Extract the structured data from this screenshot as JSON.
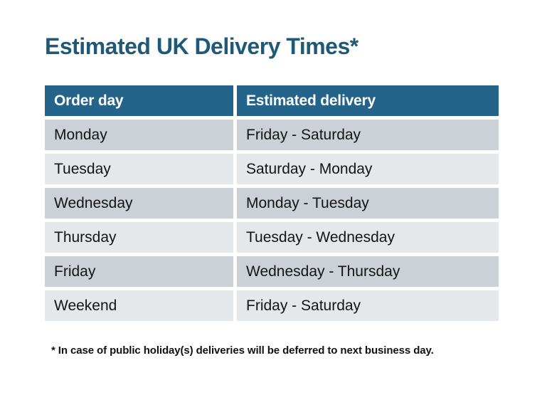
{
  "title": "Estimated UK Delivery Times*",
  "table": {
    "columns": {
      "order_day": "Order day",
      "estimated_delivery": "Estimated delivery"
    },
    "rows": [
      {
        "order_day": "Monday",
        "estimated_delivery": "Friday - Saturday"
      },
      {
        "order_day": "Tuesday",
        "estimated_delivery": "Saturday - Monday"
      },
      {
        "order_day": "Wednesday",
        "estimated_delivery": "Monday - Tuesday"
      },
      {
        "order_day": "Thursday",
        "estimated_delivery": "Tuesday - Wednesday"
      },
      {
        "order_day": "Friday",
        "estimated_delivery": "Wednesday - Thursday"
      },
      {
        "order_day": "Weekend",
        "estimated_delivery": "Friday - Saturday"
      }
    ]
  },
  "footnote": "* In case of public holiday(s) deliveries will be deferred to next business day.",
  "colors": {
    "title_text": "#1e5a78",
    "header_bg": "#25648a",
    "header_text": "#ffffff",
    "row_odd_bg": "#ccd1d8",
    "row_even_bg": "#e5e8eb",
    "cell_text": "#141414",
    "background": "#ffffff"
  }
}
